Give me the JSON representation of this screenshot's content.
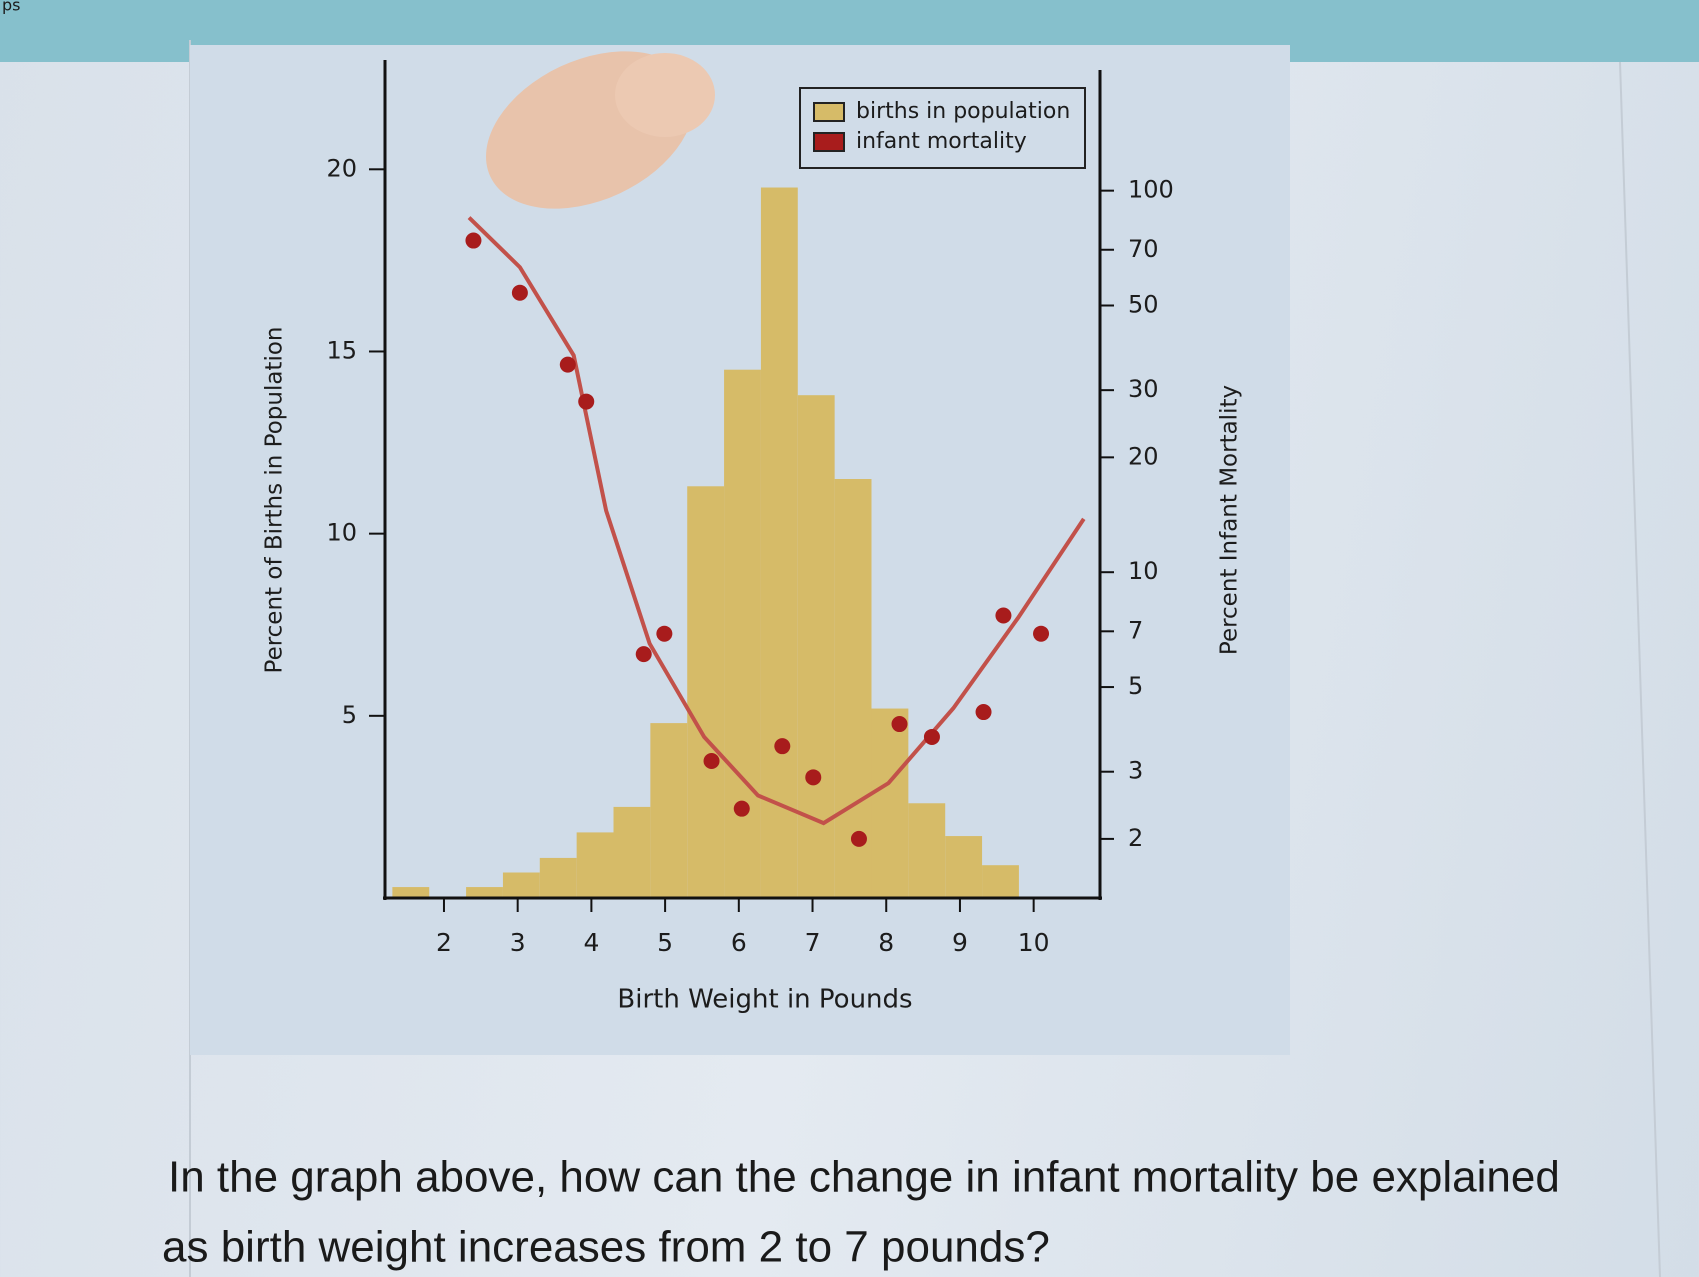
{
  "corner_text": "ps",
  "question": {
    "lines": [
      "In the graph above, how can the change in infant mortality be explained",
      "as birth weight increases from 2 to 7 pounds?"
    ]
  },
  "chart_data": {
    "type": "histogram",
    "xlabel": "Birth Weight in Pounds",
    "ylabel": "Percent of Births in Population",
    "y2label": "Percent Infant Mortality",
    "xlim": [
      1.2,
      10.9
    ],
    "xticks": [
      2,
      3,
      4,
      5,
      6,
      7,
      8,
      9,
      10
    ],
    "ylim": [
      0,
      23
    ],
    "yticks": [
      5,
      10,
      15,
      20
    ],
    "y2lim": [
      1.4,
      220
    ],
    "y2log": true,
    "y2ticks": [
      2,
      3,
      5,
      7,
      10,
      20,
      30,
      50,
      70,
      100
    ],
    "legend": "top-right",
    "bins": [
      1.3,
      1.8,
      2.3,
      2.8,
      3.3,
      3.8,
      4.3,
      4.8,
      5.3,
      5.8,
      6.3,
      6.8,
      7.3,
      7.8,
      8.3,
      8.8,
      9.3,
      9.8
    ],
    "series": [
      {
        "name": "births in population",
        "type": "histogram",
        "color": "#d6bb68",
        "values": [
          0.3,
          0,
          0.3,
          0.7,
          1.1,
          1.8,
          2.5,
          4.8,
          11.3,
          14.5,
          19.5,
          13.8,
          11.5,
          5.2,
          2.6,
          1.7,
          0.9
        ]
      },
      {
        "name": "infant mortality",
        "type": "scatter",
        "color": "#a81c1c",
        "axis": "y2",
        "x": [
          2.4,
          3.03,
          3.68,
          3.93,
          4.71,
          4.99,
          5.63,
          6.04,
          6.59,
          7.01,
          7.63,
          8.18,
          8.62,
          9.32,
          9.59,
          10.1
        ],
        "values": [
          74,
          54,
          35,
          28,
          6.1,
          6.9,
          3.2,
          2.4,
          3.5,
          2.9,
          2.0,
          4.0,
          3.7,
          4.3,
          7.7,
          6.9
        ]
      },
      {
        "type": "line",
        "color": "#c2514a",
        "axis": "y2",
        "x": [
          2.34,
          3.03,
          3.76,
          4.2,
          4.79,
          5.53,
          6.26,
          7.15,
          8.03,
          8.91,
          9.79,
          10.68
        ],
        "values": [
          85,
          63,
          37,
          14.5,
          6.5,
          3.7,
          2.6,
          2.2,
          2.8,
          4.4,
          7.6,
          13.8
        ]
      }
    ]
  }
}
